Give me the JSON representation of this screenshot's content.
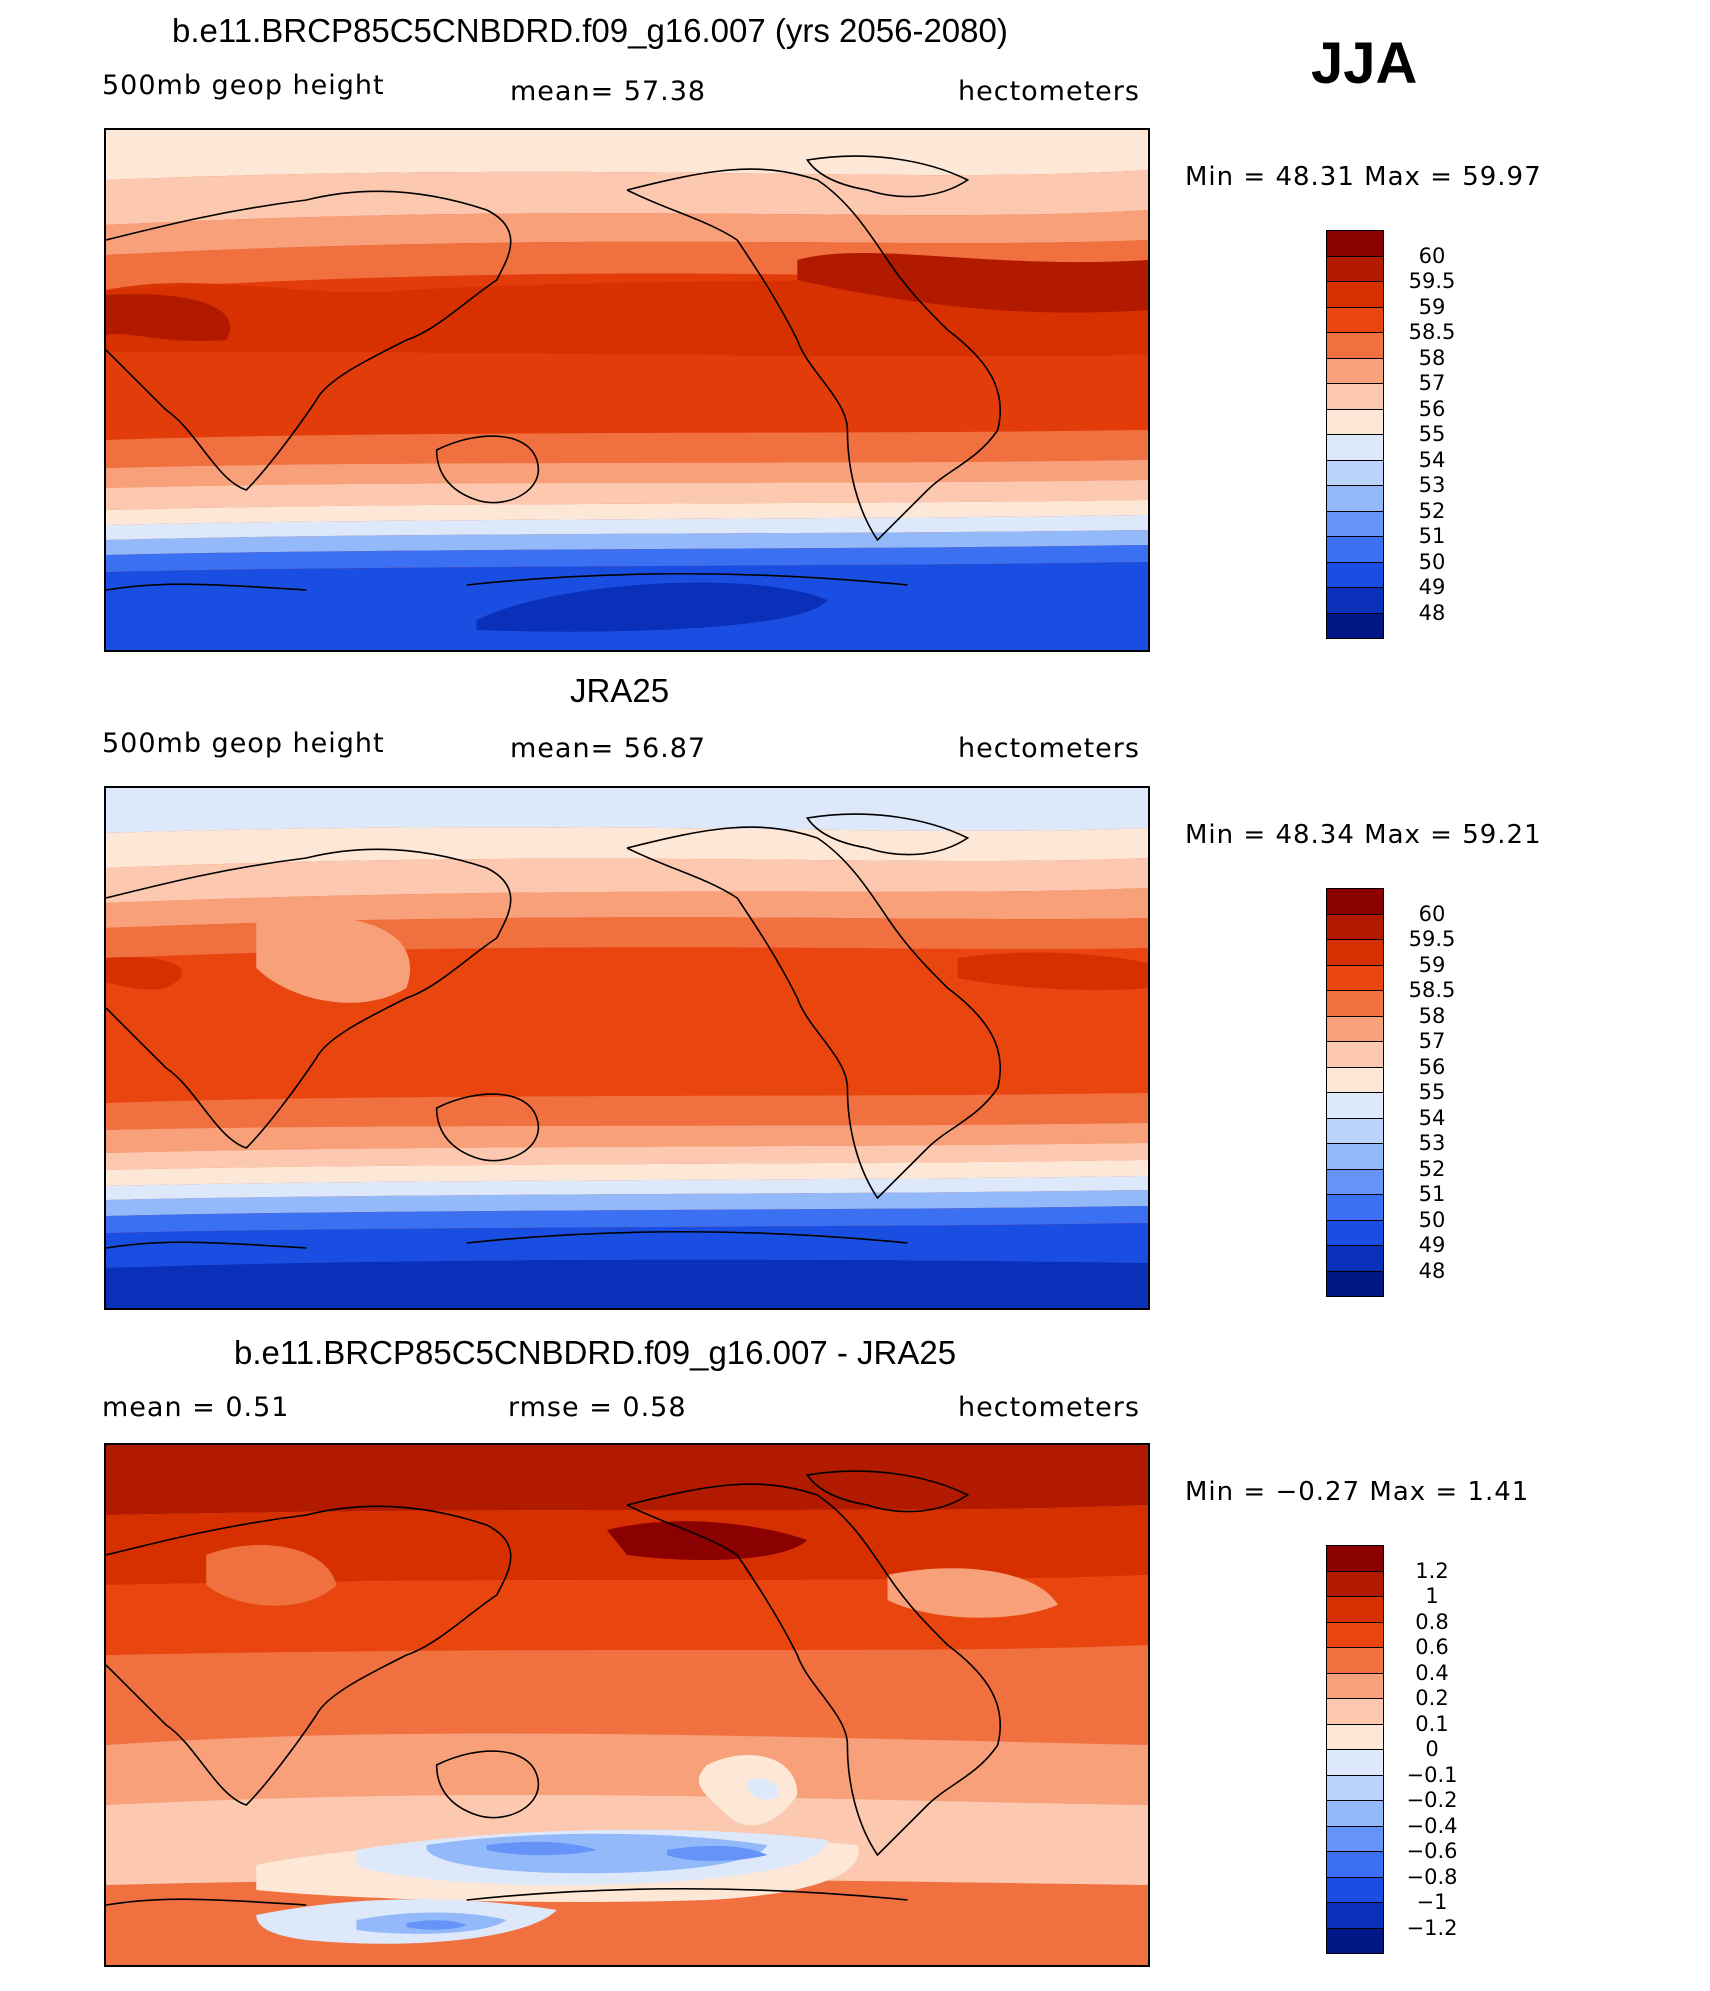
{
  "season": "JJA",
  "panels": [
    {
      "title": "b.e11.BRCP85C5CNBDRD.f09_g16.007 (yrs 2056-2080)",
      "left_label": "500mb  geop  height",
      "center_label": "mean=   57.38",
      "right_label": "hectometers",
      "minmax": "Min  =    48.31  Max  =    59.97",
      "colorbar": {
        "labels": [
          "60",
          "59.5",
          "59",
          "58.5",
          "58",
          "57",
          "56",
          "55",
          "54",
          "53",
          "52",
          "51",
          "50",
          "49",
          "48"
        ],
        "colors": [
          "#8b0000",
          "#b21a00",
          "#d63000",
          "#e8450f",
          "#f07040",
          "#f7a07a",
          "#fcc8b0",
          "#fde8d8",
          "#dde9fb",
          "#bcd3fb",
          "#94b9fb",
          "#6593f8",
          "#3c70f2",
          "#1a4ee2",
          "#0a2fb8",
          "#001785"
        ]
      },
      "map_colors": [
        "#fde8d8",
        "#fcc8b0",
        "#f7a07a",
        "#f07040",
        "#d63000",
        "#b21a00",
        "#fde8d8",
        "#dde9fb",
        "#94b9fb",
        "#3c70f2",
        "#1a4ee2",
        "#0a2fb8"
      ]
    },
    {
      "title": "JRA25",
      "left_label": "500mb  geop  height",
      "center_label": "mean=   56.87",
      "right_label": "hectometers",
      "minmax": "Min  =    48.34  Max  =    59.21",
      "colorbar": {
        "labels": [
          "60",
          "59.5",
          "59",
          "58.5",
          "58",
          "57",
          "56",
          "55",
          "54",
          "53",
          "52",
          "51",
          "50",
          "49",
          "48"
        ],
        "colors": [
          "#8b0000",
          "#b21a00",
          "#d63000",
          "#e8450f",
          "#f07040",
          "#f7a07a",
          "#fcc8b0",
          "#fde8d8",
          "#dde9fb",
          "#bcd3fb",
          "#94b9fb",
          "#6593f8",
          "#3c70f2",
          "#1a4ee2",
          "#0a2fb8",
          "#001785"
        ]
      },
      "map_colors": [
        "#dde9fb",
        "#fde8d8",
        "#fcc8b0",
        "#f7a07a",
        "#f07040",
        "#e8450f",
        "#fde8d8",
        "#dde9fb",
        "#94b9fb",
        "#3c70f2",
        "#1a4ee2",
        "#0a2fb8"
      ]
    },
    {
      "title": "b.e11.BRCP85C5CNBDRD.f09_g16.007 - JRA25",
      "left_label": "mean  =     0.51",
      "center_label": "rmse  =     0.58",
      "right_label": "hectometers",
      "minmax": "Min  =   −0.27  Max  =     1.41",
      "colorbar": {
        "labels": [
          "1.2",
          "1",
          "0.8",
          "0.6",
          "0.4",
          "0.2",
          "0.1",
          "0",
          "−0.1",
          "−0.2",
          "−0.4",
          "−0.6",
          "−0.8",
          "−1",
          "−1.2"
        ],
        "colors": [
          "#8b0000",
          "#b21a00",
          "#d63000",
          "#e8450f",
          "#f07040",
          "#f7a07a",
          "#fcc8b0",
          "#fde8d8",
          "#dde9fb",
          "#bcd3fb",
          "#94b9fb",
          "#6593f8",
          "#3c70f2",
          "#1a4ee2",
          "#0a2fb8",
          "#001785"
        ]
      },
      "map_colors": [
        "#b21a00",
        "#d63000",
        "#e8450f",
        "#f07040",
        "#f7a07a",
        "#fcc8b0",
        "#fde8d8",
        "#dde9fb",
        "#94b9fb",
        "#6593f8"
      ]
    }
  ]
}
